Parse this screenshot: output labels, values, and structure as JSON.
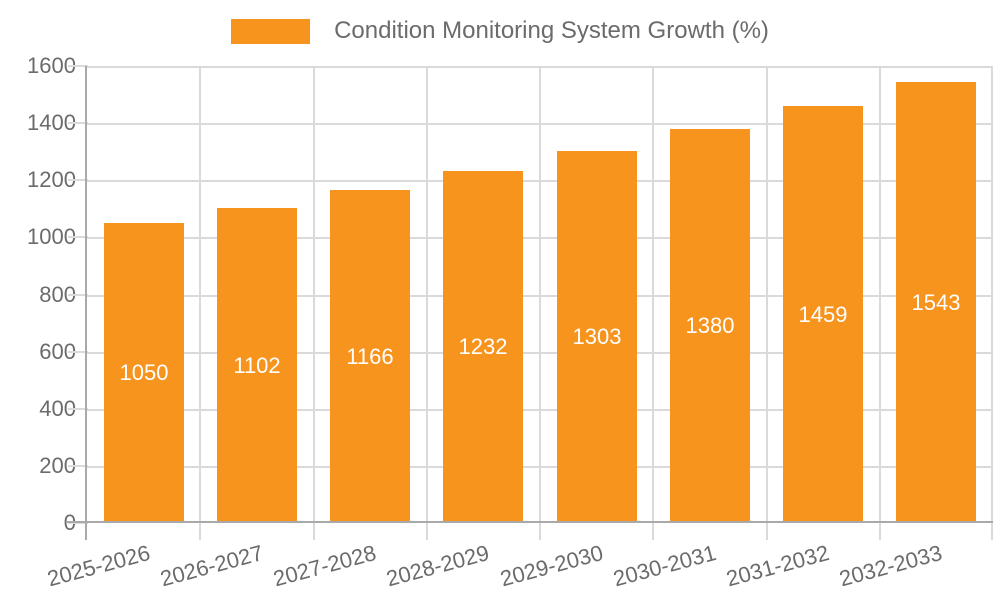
{
  "chart_data": {
    "type": "bar",
    "title": "Condition Monitoring System Growth (%)",
    "legend_position": "top",
    "categories": [
      "2025-2026",
      "2026-2027",
      "2027-2028",
      "2028-2029",
      "2029-2030",
      "2030-2031",
      "2031-2032",
      "2032-2033"
    ],
    "values": [
      1050,
      1102,
      1166,
      1232,
      1303,
      1380,
      1459,
      1543
    ],
    "ylim": [
      0,
      1600
    ],
    "ytick_step": 200,
    "ytick_labels": [
      "1600",
      "1400",
      "1200",
      "1000",
      "800",
      "600",
      "400",
      "200",
      "0"
    ],
    "grid": true,
    "xlabel": "",
    "ylabel": "",
    "bar_color": "#F7941E",
    "value_label_color": "#FFFFFF",
    "axis_text_color": "#6B6B6B",
    "gridline_color": "#DADADA",
    "axis_line_color": "#A9A9A9"
  }
}
